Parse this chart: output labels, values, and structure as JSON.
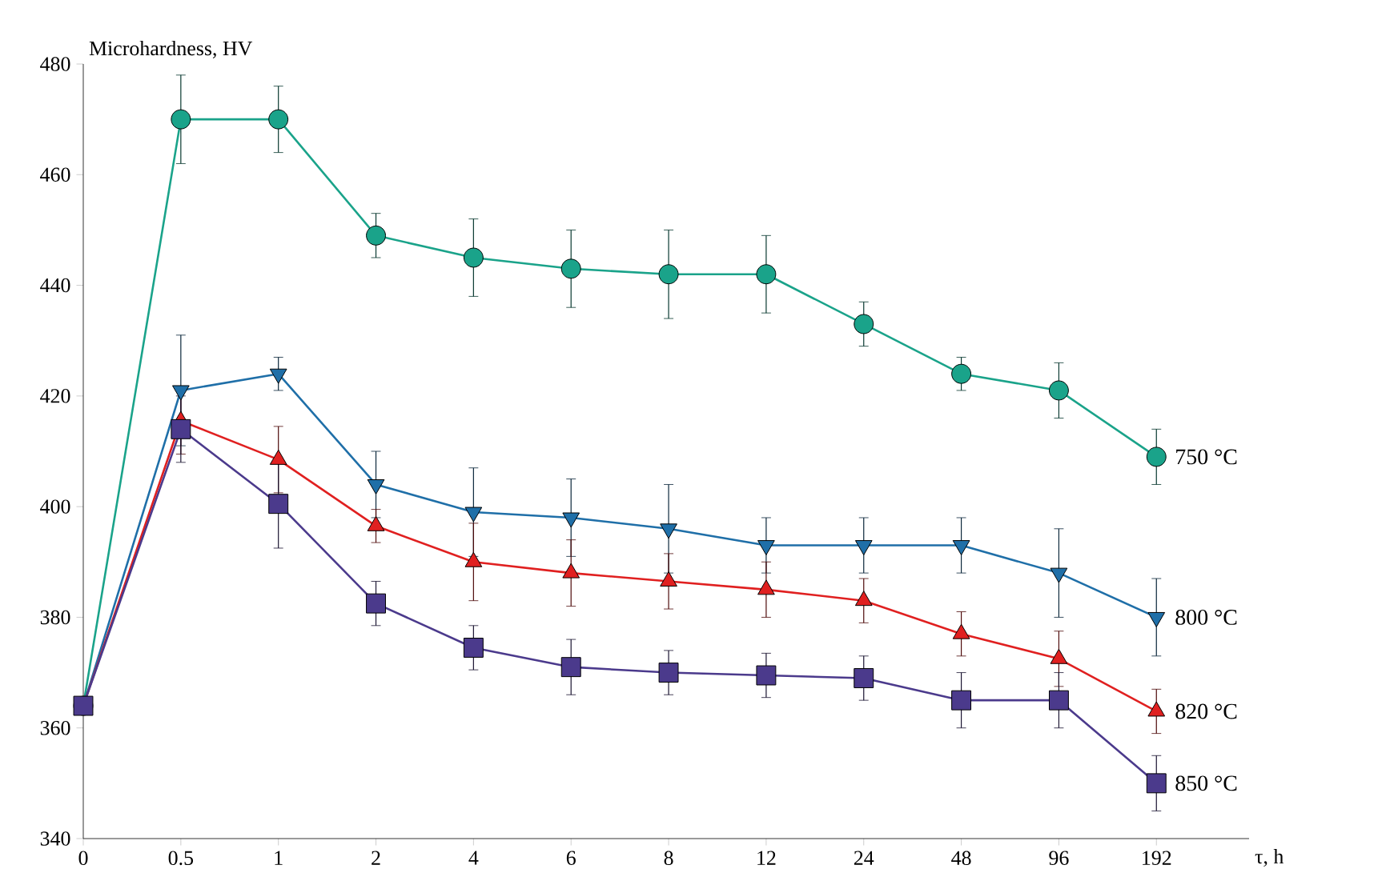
{
  "chart_data": {
    "type": "line",
    "ylabel": "Microhardness, HV",
    "xlabel": "τ, h",
    "categories": [
      "0",
      "0.5",
      "1",
      "2",
      "4",
      "6",
      "8",
      "12",
      "24",
      "48",
      "96",
      "192"
    ],
    "ylim": [
      340,
      480
    ],
    "yticks": [
      340,
      360,
      380,
      400,
      420,
      440,
      460,
      480
    ],
    "grid": false,
    "legend": false,
    "series": [
      {
        "name": "750 °C",
        "color": "#1aa38a",
        "marker": "circle",
        "values": [
          364,
          470,
          470,
          449,
          445,
          443,
          442,
          442,
          433,
          424,
          421,
          409
        ],
        "errors": [
          null,
          8,
          6,
          4,
          7,
          7,
          8,
          7,
          4,
          3,
          5,
          5
        ]
      },
      {
        "name": "800 °C",
        "color": "#1f6fa8",
        "marker": "triangle-down",
        "values": [
          364,
          421,
          424,
          404,
          399,
          398,
          396,
          393,
          393,
          393,
          388,
          380
        ],
        "errors": [
          null,
          10,
          3,
          6,
          8,
          7,
          8,
          5,
          5,
          5,
          8,
          7
        ]
      },
      {
        "name": "820 °C",
        "color": "#e02020",
        "marker": "triangle",
        "values": [
          364,
          415.5,
          408.5,
          396.5,
          390,
          388,
          386.5,
          385,
          383,
          377,
          372.5,
          363
        ],
        "errors": [
          null,
          6,
          6,
          3,
          7,
          6,
          5,
          5,
          4,
          4,
          5,
          4
        ]
      },
      {
        "name": "850 °C",
        "color": "#4b3a8c",
        "marker": "square",
        "values": [
          364,
          414,
          400.5,
          382.5,
          374.5,
          371,
          370,
          369.5,
          369,
          365,
          365,
          350
        ],
        "errors": [
          null,
          6,
          8,
          4,
          4,
          5,
          4,
          4,
          4,
          5,
          5,
          5
        ]
      }
    ]
  }
}
